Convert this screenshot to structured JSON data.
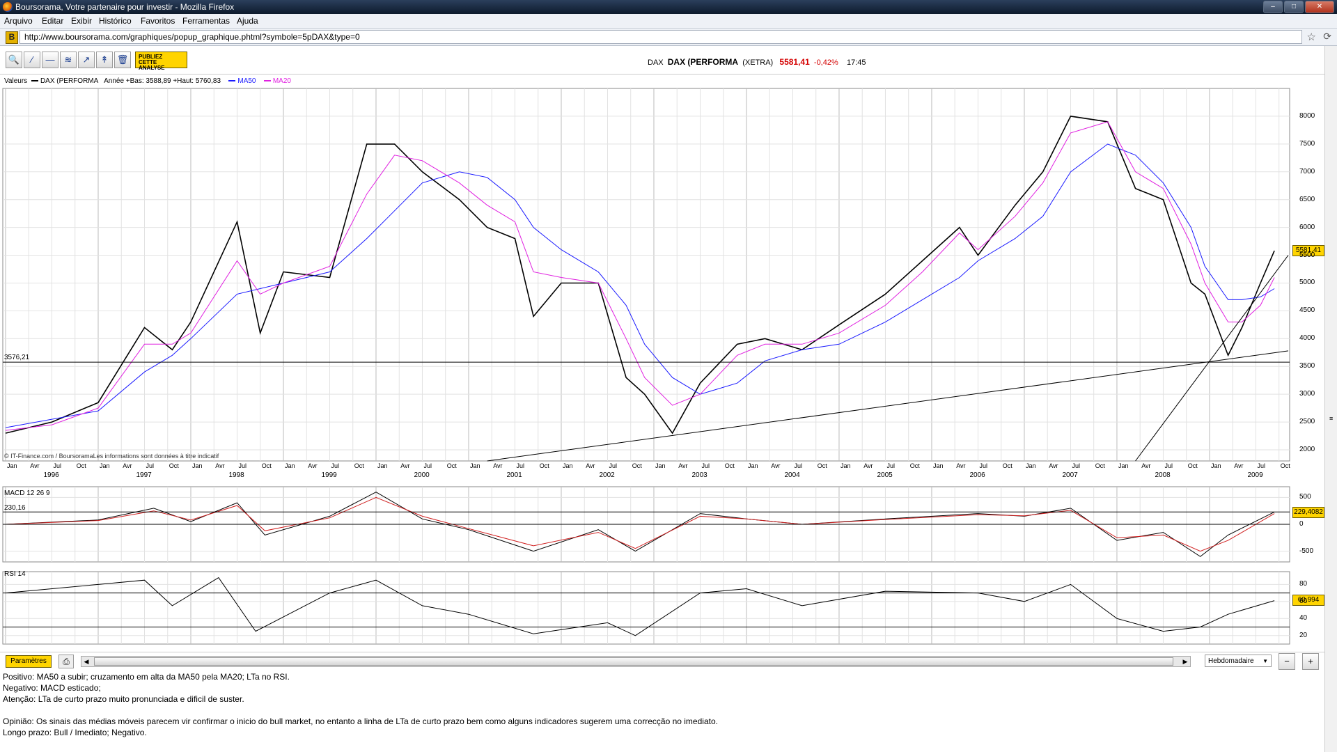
{
  "window": {
    "title": "Boursorama, Votre partenaire pour investir - Mozilla Firefox",
    "url": "http://www.boursorama.com/graphiques/popup_graphique.phtml?symbole=5pDAX&type=0",
    "menu": [
      "Arquivo",
      "Editar",
      "Exibir",
      "Histórico",
      "Favoritos",
      "Ferramentas",
      "Ajuda"
    ]
  },
  "toolbar": {
    "publiez": [
      "PUBLIEZ",
      "CETTE",
      "ANALYSE"
    ]
  },
  "quote": {
    "code": "DAX",
    "name": "DAX (PERFORMA",
    "market": "(XETRA)",
    "last": "5581,41",
    "change": "-0,42%",
    "time": "17:45"
  },
  "legend": {
    "valeurs": "Valeurs",
    "instrument": "DAX (PERFORMA",
    "range": "Année +Bas: 3588,89 +Haut: 5760,83",
    "ma50": "MA50",
    "ma20": "MA20"
  },
  "colors": {
    "ma50": "#1a1aff",
    "ma20": "#e020e0",
    "macd_signal": "#d02020",
    "price": "#000000",
    "highlight": "#ffd400"
  },
  "copyright": "© IT-Finance.com / BoursoramaLes informations sont données à titre indicatif",
  "support_label": "3576,21",
  "macd_level_label": "230,16",
  "panels": {
    "macd": "MACD 12 26 9",
    "rsi": "RSI 14"
  },
  "value_boxes": {
    "price": "5581,41",
    "macd": "229,4082",
    "rsi": "60,994"
  },
  "bottom": {
    "params": "Paramètres",
    "period": "Hebdomadaire"
  },
  "commentary": [
    "Positivo: MA50 a subir; cruzamento em alta da MA50 pela MA20; LTa no RSI.",
    "Negativo: MACD esticado;",
    "Atenção: LTa de curto prazo muito pronunciada e dificil de suster.",
    "",
    "Opinião: Os sinais das médias móveis parecem vir confirmar o inicio do bull market, no entanto a linha de LTa de curto prazo bem como alguns indicadores sugerem uma correcção no imediato.",
    "Longo prazo: Bull / Imediato; Negativo."
  ],
  "chart_data": [
    {
      "type": "line",
      "title": "DAX (PERFORMA (XETRA)",
      "x_tick_months": [
        "Jan",
        "Avr",
        "Jul",
        "Oct"
      ],
      "x_years": [
        "1996",
        "1997",
        "1998",
        "1999",
        "2000",
        "2001",
        "2002",
        "2003",
        "2004",
        "2005",
        "2006",
        "2007",
        "2008",
        "2009"
      ],
      "ylim": [
        1800,
        8500
      ],
      "y_ticks": [
        2000,
        2500,
        3000,
        3500,
        4000,
        4500,
        5000,
        5500,
        6000,
        6500,
        7000,
        7500,
        8000
      ],
      "grid": true,
      "legend_position": "top-left",
      "x": [
        1996.0,
        1996.5,
        1997.0,
        1997.5,
        1997.8,
        1998.0,
        1998.5,
        1998.75,
        1999.0,
        1999.5,
        1999.9,
        2000.2,
        2000.5,
        2000.9,
        2001.2,
        2001.5,
        2001.7,
        2002.0,
        2002.4,
        2002.7,
        2002.9,
        2003.2,
        2003.5,
        2003.9,
        2004.2,
        2004.6,
        2005.0,
        2005.5,
        2005.9,
        2006.3,
        2006.5,
        2006.9,
        2007.2,
        2007.5,
        2007.9,
        2008.2,
        2008.5,
        2008.8,
        2008.95,
        2009.2,
        2009.35,
        2009.55,
        2009.7
      ],
      "series": [
        {
          "name": "DAX (PERFORMA",
          "values": [
            2300,
            2500,
            2850,
            4200,
            3800,
            4300,
            6100,
            4100,
            5200,
            5100,
            7500,
            7500,
            7000,
            6500,
            6000,
            5800,
            4400,
            5000,
            5000,
            3300,
            3000,
            2300,
            3200,
            3900,
            4000,
            3800,
            4250,
            4800,
            5400,
            6000,
            5500,
            6400,
            7000,
            8000,
            7900,
            6700,
            6500,
            5000,
            4800,
            3700,
            4200,
            5000,
            5581.41
          ]
        },
        {
          "name": "MA50",
          "values": [
            2400,
            2550,
            2700,
            3400,
            3700,
            4000,
            4800,
            4900,
            5000,
            5200,
            5800,
            6300,
            6800,
            7000,
            6900,
            6500,
            6000,
            5600,
            5200,
            4600,
            3900,
            3300,
            3000,
            3200,
            3600,
            3800,
            3900,
            4300,
            4700,
            5100,
            5400,
            5800,
            6200,
            7000,
            7500,
            7300,
            6800,
            6000,
            5300,
            4700,
            4700,
            4750,
            4900
          ]
        },
        {
          "name": "MA20",
          "values": [
            2350,
            2450,
            2750,
            3900,
            3900,
            4100,
            5400,
            4800,
            5000,
            5300,
            6600,
            7300,
            7200,
            6800,
            6400,
            6100,
            5200,
            5100,
            5000,
            4000,
            3300,
            2800,
            3000,
            3700,
            3900,
            3900,
            4100,
            4600,
            5200,
            5900,
            5600,
            6200,
            6800,
            7700,
            7900,
            7000,
            6700,
            5700,
            5000,
            4300,
            4300,
            4600,
            5100
          ]
        }
      ]
    },
    {
      "type": "line",
      "title": "MACD 12 26 9",
      "ylim": [
        -700,
        700
      ],
      "y_ticks": [
        -500,
        0,
        500
      ],
      "x": [
        1996.0,
        1997.0,
        1997.6,
        1998.0,
        1998.5,
        1998.8,
        1999.5,
        2000.0,
        2000.5,
        2001.0,
        2001.7,
        2002.4,
        2002.8,
        2003.5,
        2004.0,
        2004.6,
        2005.5,
        2006.5,
        2007.0,
        2007.5,
        2008.0,
        2008.5,
        2008.9,
        2009.2,
        2009.7
      ],
      "series": [
        {
          "name": "MACD",
          "values": [
            0,
            80,
            300,
            50,
            400,
            -200,
            150,
            600,
            100,
            -100,
            -500,
            -100,
            -500,
            200,
            100,
            0,
            100,
            200,
            150,
            300,
            -300,
            -150,
            -600,
            -200,
            229.4082
          ]
        },
        {
          "name": "Signal",
          "values": [
            0,
            70,
            250,
            80,
            350,
            -120,
            120,
            500,
            150,
            -80,
            -400,
            -150,
            -450,
            150,
            100,
            0,
            90,
            180,
            160,
            260,
            -250,
            -200,
            -500,
            -300,
            200
          ]
        }
      ]
    },
    {
      "type": "line",
      "title": "RSI 14",
      "ylim": [
        10,
        95
      ],
      "y_ticks": [
        20,
        40,
        60,
        80
      ],
      "x": [
        1996.0,
        1997.0,
        1997.5,
        1997.8,
        1998.3,
        1998.7,
        1999.5,
        2000.0,
        2000.5,
        2001.0,
        2001.7,
        2002.5,
        2002.8,
        2003.5,
        2004.0,
        2004.6,
        2005.5,
        2006.5,
        2007.0,
        2007.5,
        2008.0,
        2008.5,
        2008.9,
        2009.2,
        2009.7
      ],
      "series": [
        {
          "name": "RSI 14",
          "values": [
            70,
            80,
            85,
            55,
            88,
            25,
            70,
            85,
            55,
            45,
            22,
            35,
            20,
            70,
            75,
            55,
            72,
            70,
            60,
            80,
            40,
            25,
            30,
            45,
            60.994
          ]
        }
      ]
    }
  ]
}
